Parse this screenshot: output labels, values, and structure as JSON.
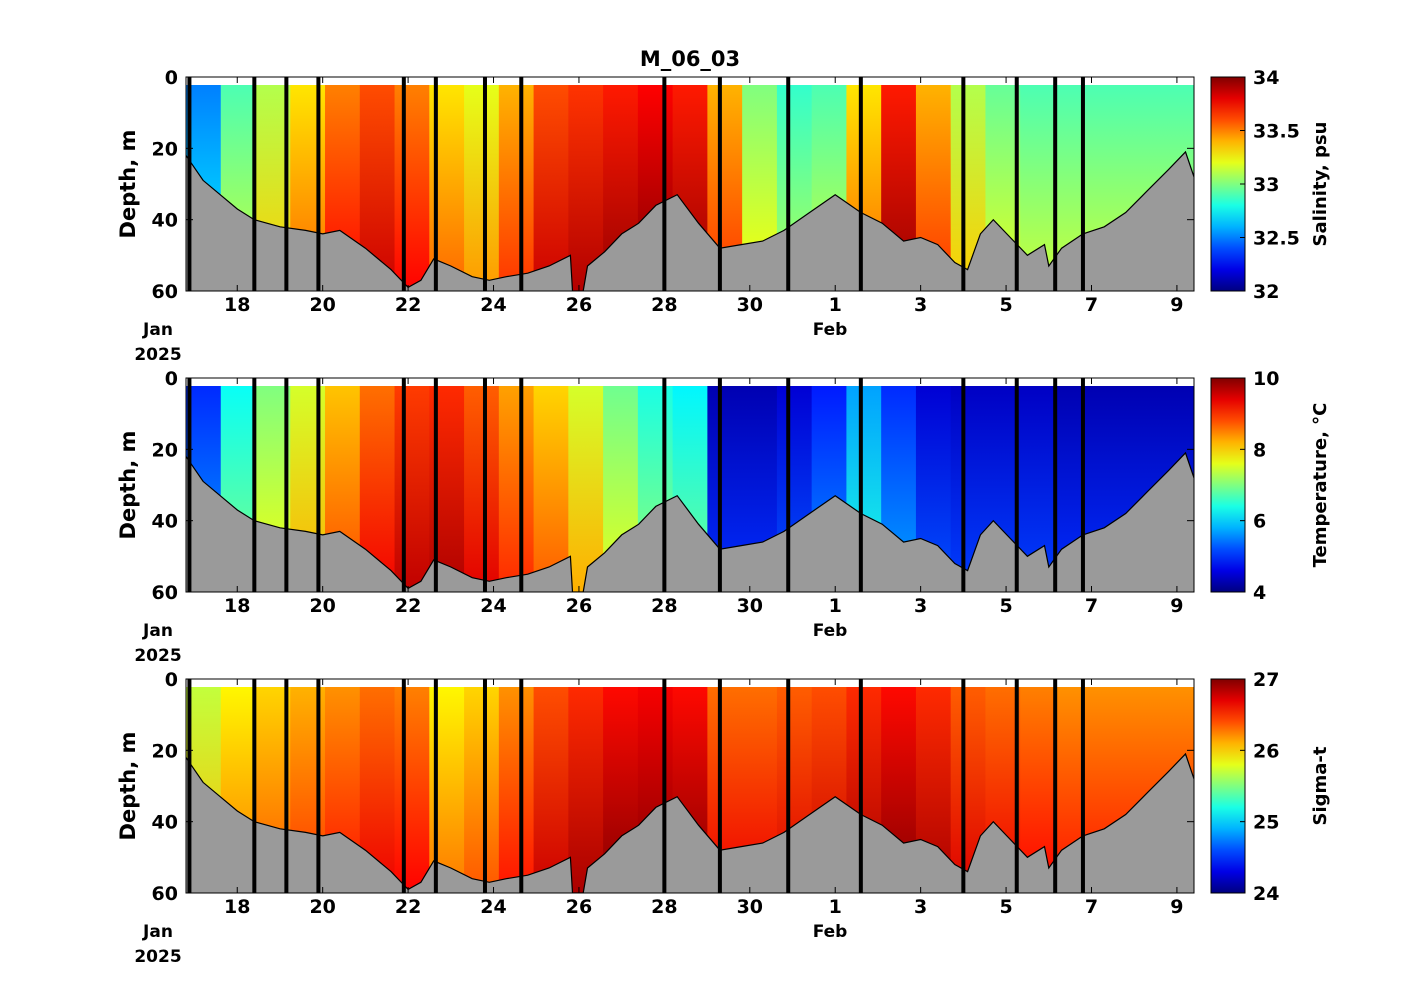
{
  "title": "M_06_03",
  "chart_data": [
    {
      "type": "heatmap",
      "variable": "salinity",
      "ylabel": "Depth, m",
      "colorbar_label": "Salinity, psu",
      "colorbar_ticks": [
        "32",
        "32.5",
        "33",
        "33.5",
        "34"
      ],
      "clim": [
        32,
        34
      ],
      "colormap": "jet",
      "surface_profile": [
        32.5,
        32.9,
        33.1,
        33.3,
        33.5,
        33.6,
        33.5,
        33.3,
        33.2,
        33.4,
        33.6,
        33.65,
        33.7,
        33.75,
        33.7,
        33.4,
        33.0,
        32.85,
        32.9,
        33.3,
        33.7,
        33.4,
        33.1,
        32.95,
        32.9,
        32.9,
        32.9,
        32.9,
        32.9
      ],
      "deep_offset": 0.25
    },
    {
      "type": "heatmap",
      "variable": "temperature",
      "ylabel": "Depth, m",
      "colorbar_label": "Temperature, °C",
      "colorbar_ticks": [
        "4",
        "6",
        "8",
        "10"
      ],
      "clim": [
        4,
        10
      ],
      "colormap": "jet",
      "surface_profile": [
        5.0,
        6.3,
        7.0,
        7.5,
        8.1,
        8.6,
        8.9,
        9.0,
        8.7,
        8.3,
        8.0,
        7.5,
        6.9,
        6.4,
        6.2,
        4.3,
        4.3,
        4.5,
        4.9,
        5.7,
        5.0,
        4.5,
        4.4,
        4.4,
        4.4,
        4.3,
        4.3,
        4.3,
        4.3
      ],
      "deep_offset": 0.4
    },
    {
      "type": "heatmap",
      "variable": "sigma-t",
      "ylabel": "Depth, m",
      "colorbar_label": "Sigma-t",
      "colorbar_ticks": [
        "24",
        "25",
        "26",
        "27"
      ],
      "clim": [
        24,
        27
      ],
      "colormap": "jet",
      "surface_profile": [
        25.7,
        25.9,
        26.0,
        26.1,
        26.2,
        26.3,
        26.25,
        25.9,
        26.0,
        26.2,
        26.4,
        26.5,
        26.6,
        26.65,
        26.6,
        26.3,
        26.3,
        26.35,
        26.4,
        26.5,
        26.6,
        26.5,
        26.35,
        26.3,
        26.25,
        26.2,
        26.2,
        26.2,
        26.2
      ],
      "deep_offset": 0.25
    }
  ],
  "axes": {
    "ylim": [
      0,
      60
    ],
    "yticks": [
      "0",
      "20",
      "40",
      "60"
    ],
    "xlim_days": [
      16.8,
      40.4
    ],
    "xticks": [
      {
        "day": 18,
        "label": "18"
      },
      {
        "day": 20,
        "label": "20"
      },
      {
        "day": 22,
        "label": "22"
      },
      {
        "day": 24,
        "label": "24"
      },
      {
        "day": 26,
        "label": "26"
      },
      {
        "day": 28,
        "label": "28"
      },
      {
        "day": 30,
        "label": "30"
      },
      {
        "day": 32,
        "label": "1"
      },
      {
        "day": 34,
        "label": "3"
      },
      {
        "day": 36,
        "label": "5"
      },
      {
        "day": 38,
        "label": "7"
      },
      {
        "day": 40,
        "label": "9"
      }
    ],
    "month_left": "Jan",
    "year_left": "2025",
    "month_right": "Feb",
    "seafloor_depth": [
      [
        16.8,
        22
      ],
      [
        17.2,
        29
      ],
      [
        17.6,
        33
      ],
      [
        18.0,
        37
      ],
      [
        18.4,
        40
      ],
      [
        19.0,
        42
      ],
      [
        19.6,
        43
      ],
      [
        20.0,
        44
      ],
      [
        20.4,
        43
      ],
      [
        21.0,
        48
      ],
      [
        21.6,
        54
      ],
      [
        22.0,
        59
      ],
      [
        22.3,
        57
      ],
      [
        22.6,
        51
      ],
      [
        23.0,
        53
      ],
      [
        23.5,
        56
      ],
      [
        23.9,
        57
      ],
      [
        24.3,
        56
      ],
      [
        24.8,
        55
      ],
      [
        25.3,
        53
      ],
      [
        25.8,
        50
      ],
      [
        25.85,
        60
      ],
      [
        26.1,
        60
      ],
      [
        26.2,
        53
      ],
      [
        26.6,
        49
      ],
      [
        27.0,
        44
      ],
      [
        27.4,
        41
      ],
      [
        27.8,
        36
      ],
      [
        28.3,
        33
      ],
      [
        28.8,
        41
      ],
      [
        29.3,
        48
      ],
      [
        29.8,
        47
      ],
      [
        30.3,
        46
      ],
      [
        30.8,
        43
      ],
      [
        31.4,
        38
      ],
      [
        32.0,
        33
      ],
      [
        32.6,
        38
      ],
      [
        33.1,
        41
      ],
      [
        33.6,
        46
      ],
      [
        34.0,
        45
      ],
      [
        34.4,
        47
      ],
      [
        34.8,
        52
      ],
      [
        35.1,
        54
      ],
      [
        35.4,
        44
      ],
      [
        35.7,
        40
      ],
      [
        36.1,
        45
      ],
      [
        36.5,
        50
      ],
      [
        36.9,
        47
      ],
      [
        37.0,
        53
      ],
      [
        37.3,
        48
      ],
      [
        37.8,
        44
      ],
      [
        38.3,
        42
      ],
      [
        38.8,
        38
      ],
      [
        39.3,
        32
      ],
      [
        39.8,
        26
      ],
      [
        40.2,
        21
      ],
      [
        40.4,
        28
      ]
    ],
    "cast_days": [
      16.88,
      18.4,
      19.15,
      19.9,
      21.9,
      22.65,
      23.8,
      24.65,
      28.0,
      29.3,
      30.9,
      32.6,
      35.0,
      36.25,
      37.15,
      37.8
    ]
  }
}
